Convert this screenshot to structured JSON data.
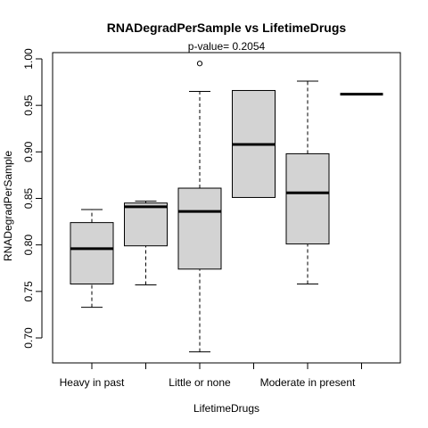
{
  "chart_data": {
    "type": "box",
    "title": "RNADegradPerSample  vs  LifetimeDrugs",
    "subtitle": "p-value= 0.2054",
    "xlabel": "LifetimeDrugs",
    "ylabel": "RNADegradPerSample",
    "ylim": [
      0.67,
      1.01
    ],
    "y_ticks": [
      "0.70",
      "0.75",
      "0.80",
      "0.85",
      "0.90",
      "0.95",
      "1.00"
    ],
    "categories": [
      "Heavy in past",
      "",
      "Little or none",
      "",
      "Moderate in present",
      ""
    ],
    "x_tick_labels_shown": [
      "Heavy in past",
      "Little or none",
      "Moderate in present"
    ],
    "boxes": [
      {
        "whisker_low": 0.733,
        "q1": 0.758,
        "median": 0.796,
        "q3": 0.824,
        "whisker_high": 0.838,
        "outliers": []
      },
      {
        "whisker_low": 0.757,
        "q1": 0.799,
        "median": 0.841,
        "q3": 0.845,
        "whisker_high": 0.847,
        "outliers": []
      },
      {
        "whisker_low": 0.685,
        "q1": 0.774,
        "median": 0.836,
        "q3": 0.861,
        "whisker_high": 0.965,
        "outliers": [
          0.995
        ]
      },
      {
        "whisker_low": 0.851,
        "q1": 0.851,
        "median": 0.908,
        "q3": 0.966,
        "whisker_high": 0.966,
        "outliers": []
      },
      {
        "whisker_low": 0.758,
        "q1": 0.801,
        "median": 0.856,
        "q3": 0.898,
        "whisker_high": 0.976,
        "outliers": []
      },
      {
        "whisker_low": 0.962,
        "q1": 0.962,
        "median": 0.962,
        "q3": 0.962,
        "whisker_high": 0.962,
        "outliers": []
      }
    ],
    "box_fill": "#d3d3d3",
    "box_stroke": "#000000",
    "grid": false,
    "legend": "none"
  }
}
